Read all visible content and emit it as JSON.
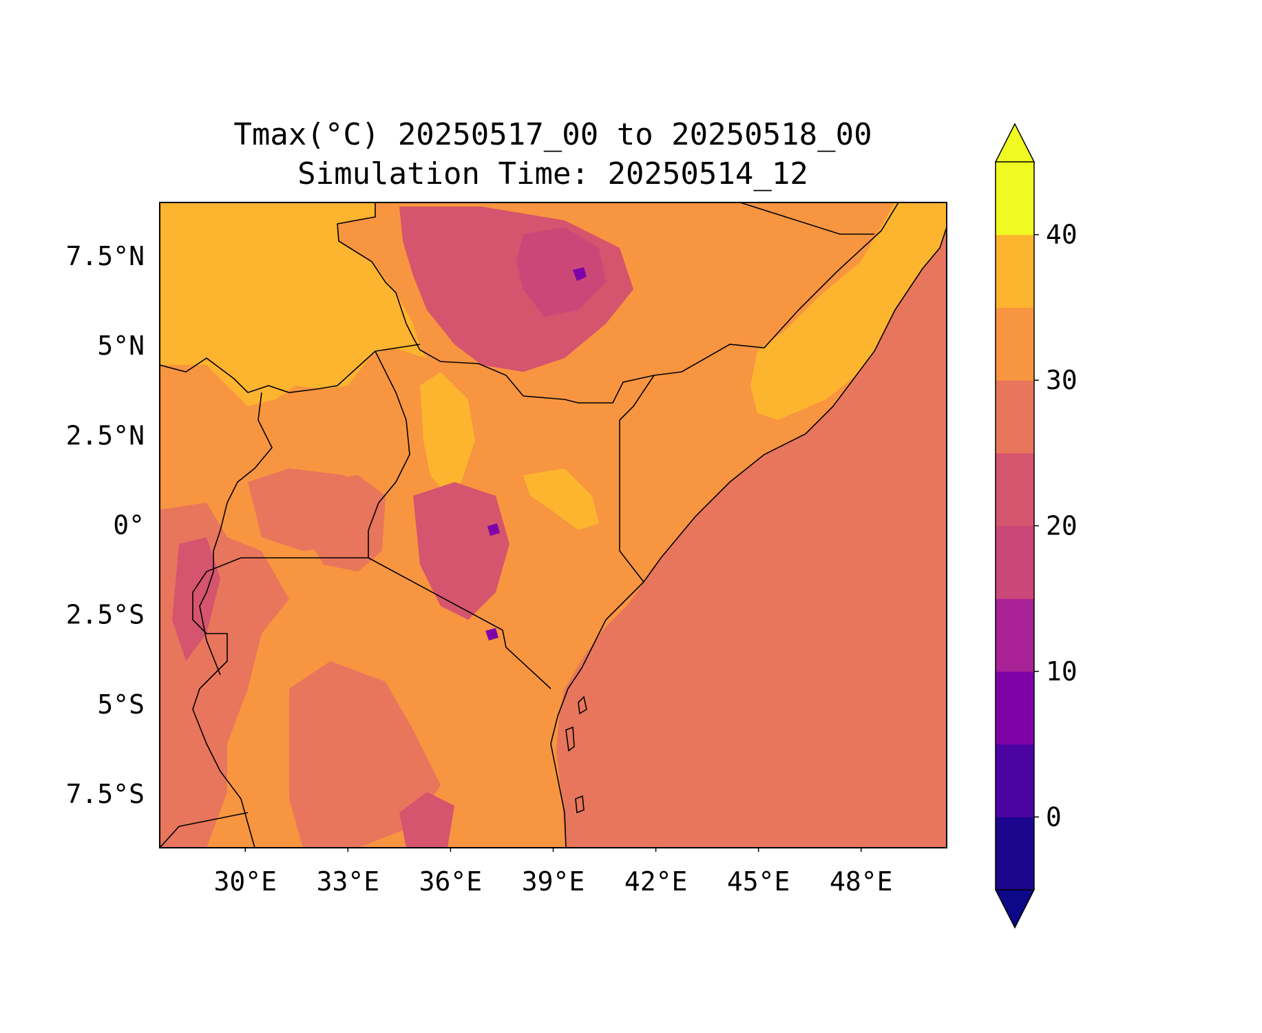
{
  "title": {
    "line1": "Tmax(°C) 20250517_00 to 20250518_00",
    "line2": "Simulation Time: 20250514_12"
  },
  "map": {
    "lon_range": [
      27.5,
      50.5
    ],
    "lat_range": [
      -9.0,
      9.0
    ],
    "x_ticks": [
      {
        "lon": 30,
        "label": "30°E"
      },
      {
        "lon": 33,
        "label": "33°E"
      },
      {
        "lon": 36,
        "label": "36°E"
      },
      {
        "lon": 39,
        "label": "39°E"
      },
      {
        "lon": 42,
        "label": "42°E"
      },
      {
        "lon": 45,
        "label": "45°E"
      },
      {
        "lon": 48,
        "label": "48°E"
      }
    ],
    "y_ticks": [
      {
        "lat": 7.5,
        "label": "7.5°N"
      },
      {
        "lat": 5,
        "label": "5°N"
      },
      {
        "lat": 2.5,
        "label": "2.5°N"
      },
      {
        "lat": 0,
        "label": "0°"
      },
      {
        "lat": -2.5,
        "label": "2.5°S"
      },
      {
        "lat": -5,
        "label": "5°S"
      },
      {
        "lat": -7.5,
        "label": "7.5°S"
      }
    ],
    "ocean_value_c": 28,
    "warm_north_value_c": 37,
    "highland_value_c": 22,
    "peak_value_c": 12
  },
  "colorbar": {
    "levels": [
      -5,
      0,
      5,
      10,
      15,
      20,
      25,
      30,
      35,
      40,
      45
    ],
    "colors": [
      "#1b068d",
      "#4b03a1",
      "#7d03a8",
      "#a82296",
      "#cb4778",
      "#d5546e",
      "#e8765c",
      "#f89540",
      "#fdb42f",
      "#f0f921"
    ],
    "extend": "both",
    "under_color": "#0d0887",
    "over_color": "#f0f921",
    "ticks": [
      {
        "value": 0,
        "label": "0"
      },
      {
        "value": 10,
        "label": "10"
      },
      {
        "value": 20,
        "label": "20"
      },
      {
        "value": 30,
        "label": "30"
      },
      {
        "value": 40,
        "label": "40"
      }
    ]
  }
}
